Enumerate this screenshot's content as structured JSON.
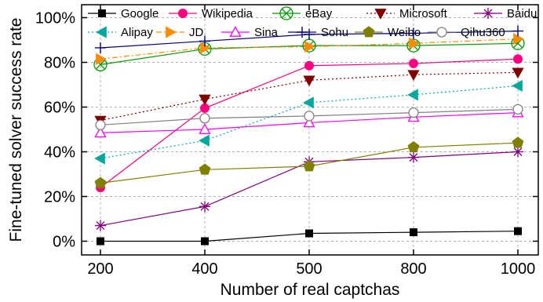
{
  "chart_data": {
    "type": "line",
    "xlabel": "Number of real captchas",
    "ylabel": "Fine-tuned solver success rate",
    "categories": [
      "200",
      "400",
      "500",
      "800",
      "1000"
    ],
    "ylim": [
      -5,
      100
    ],
    "yticks": [
      0,
      20,
      40,
      60,
      80,
      100
    ],
    "ytick_labels": [
      "0%",
      "20%",
      "40%",
      "60%",
      "80%",
      "100%"
    ],
    "grid": true,
    "legend_position": "top",
    "series": [
      {
        "name": "Google",
        "color": "#000000",
        "marker": "square",
        "dash": "solid",
        "values": [
          0,
          0,
          3.5,
          4,
          4.5
        ]
      },
      {
        "name": "Wikipedia",
        "color": "#ff007f",
        "marker": "circle",
        "dash": "solid",
        "values": [
          24,
          59.5,
          78.5,
          79.5,
          81.5
        ]
      },
      {
        "name": "eBay",
        "color": "#009900",
        "marker": "circlex",
        "dash": "solid",
        "values": [
          79,
          86,
          87.5,
          87.5,
          88.5
        ]
      },
      {
        "name": "Microsoft",
        "color": "#800000",
        "marker": "triangle-down",
        "dash": "dot",
        "values": [
          54,
          63.5,
          72,
          74.5,
          75.5
        ]
      },
      {
        "name": "Baidu",
        "color": "#800080",
        "marker": "star",
        "dash": "solid",
        "values": [
          7,
          15.5,
          35.5,
          37.5,
          40
        ]
      },
      {
        "name": "Alipay",
        "color": "#00a99d",
        "marker": "triangle-left",
        "dash": "dot",
        "values": [
          37,
          45,
          62,
          65.5,
          69.5
        ]
      },
      {
        "name": "JD",
        "color": "#ff8c00",
        "marker": "triangle-right",
        "dash": "dashdot",
        "values": [
          81.5,
          86.5,
          87,
          88.5,
          90.5
        ]
      },
      {
        "name": "Sina",
        "color": "#ff00ff",
        "marker": "triangle-up-open",
        "dash": "solid",
        "values": [
          48.5,
          50,
          53,
          55.5,
          57.5
        ]
      },
      {
        "name": "Sohu",
        "color": "#000080",
        "marker": "plus",
        "dash": "solid",
        "values": [
          86.5,
          89.5,
          92.5,
          93,
          94
        ]
      },
      {
        "name": "Weibo",
        "color": "#808000",
        "marker": "pentagon",
        "dash": "solid",
        "values": [
          26,
          32,
          33.5,
          42,
          44
        ]
      },
      {
        "name": "Qihu360",
        "color": "#808080",
        "marker": "circle-open",
        "dash": "solid",
        "values": [
          52,
          55,
          56,
          57.5,
          59
        ]
      }
    ]
  }
}
